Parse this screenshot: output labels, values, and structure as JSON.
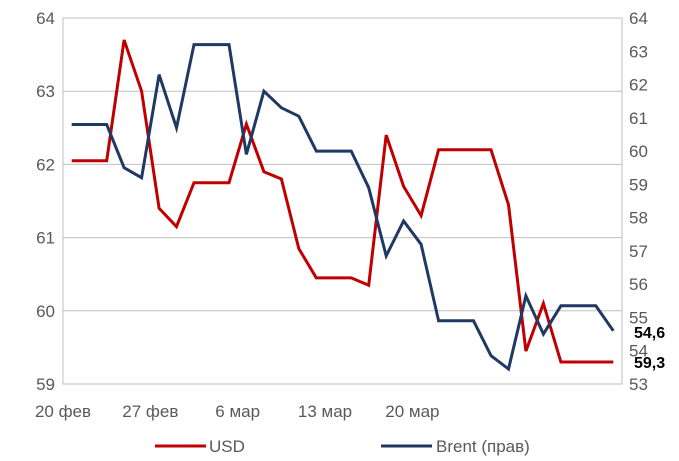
{
  "chart_data": {
    "type": "line",
    "title": "",
    "x_ticks": [
      "20 фев",
      "27 фев",
      "6 мар",
      "13 мар",
      "20 мар"
    ],
    "left_axis": {
      "ylim": [
        59,
        64
      ],
      "ticks": [
        "59",
        "60",
        "61",
        "62",
        "63",
        "64"
      ]
    },
    "right_axis": {
      "ylim": [
        53,
        64
      ],
      "ticks": [
        "53",
        "54",
        "55",
        "56",
        "57",
        "58",
        "59",
        "60",
        "61",
        "62",
        "63",
        "64"
      ]
    },
    "grid": true,
    "legend_position": "bottom",
    "series": [
      {
        "name": "USD",
        "axis": "left",
        "color": "#c00000",
        "end_label": "59,3",
        "values": [
          62.05,
          62.05,
          62.05,
          63.7,
          63.0,
          61.4,
          61.15,
          61.75,
          61.75,
          61.75,
          62.55,
          61.9,
          61.8,
          60.85,
          60.45,
          60.45,
          60.45,
          60.35,
          62.4,
          61.7,
          61.3,
          62.2,
          62.2,
          62.2,
          62.2,
          61.45,
          59.45,
          60.1,
          59.3,
          59.3,
          59.3,
          59.3
        ]
      },
      {
        "name": "Brent (прав)",
        "axis": "right",
        "color": "#1f3864",
        "end_label": "54,6",
        "values": [
          60.8,
          60.8,
          60.8,
          59.5,
          59.2,
          62.3,
          60.7,
          63.2,
          63.2,
          63.2,
          59.9,
          61.8,
          61.3,
          61.05,
          60.0,
          60.0,
          60.0,
          58.9,
          56.85,
          57.9,
          57.2,
          54.9,
          54.9,
          54.9,
          53.85,
          53.45,
          55.65,
          54.5,
          55.35,
          55.35,
          55.35,
          54.6
        ]
      }
    ]
  }
}
